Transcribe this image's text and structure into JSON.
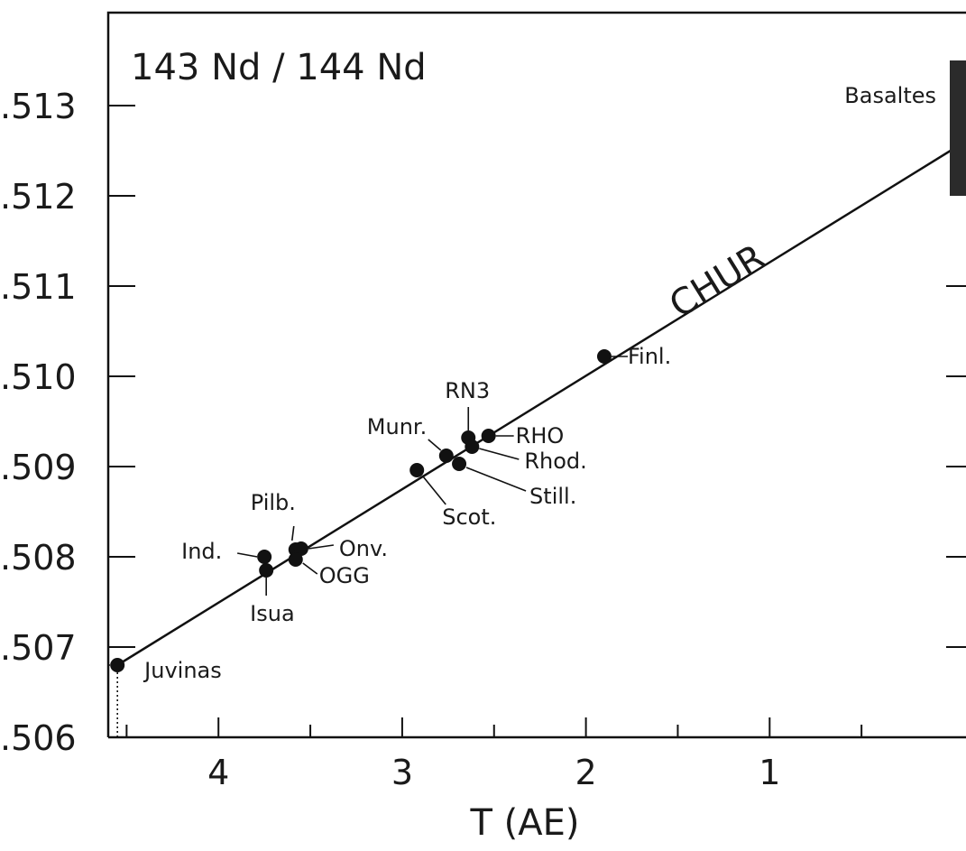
{
  "chart_data": {
    "type": "scatter",
    "title": "143 Nd / 144 Nd",
    "xlabel": "T (AE)",
    "ylabel": "",
    "xlim": [
      4.6,
      0
    ],
    "ylim": [
      0.506,
      0.5137
    ],
    "x_reversed": true,
    "x_ticks_major": [
      4,
      3,
      2,
      1
    ],
    "x_tick_labels": [
      "4",
      "3",
      "2",
      "1"
    ],
    "x_ticks_minor": [
      4.5,
      3.5,
      2.5,
      1.5,
      0.5
    ],
    "y_ticks": [
      0.506,
      0.507,
      0.508,
      0.509,
      0.51,
      0.511,
      0.512,
      0.513
    ],
    "y_tick_labels": [
      ".506",
      ".507",
      ".508",
      ".509",
      ".510",
      ".511",
      ".512",
      ".513"
    ],
    "grid": false,
    "reference_line": {
      "label": "CHUR",
      "x": [
        4.55,
        0
      ],
      "y": [
        0.5068,
        0.51252
      ]
    },
    "range_bar": {
      "label": "Basaltes",
      "x": 0,
      "y": [
        0.512,
        0.5135
      ]
    },
    "points": [
      {
        "label": "Juvinas",
        "x": 4.55,
        "y": 0.5068
      },
      {
        "label": "Ind.",
        "x": 3.75,
        "y": 0.508
      },
      {
        "label": "Isua",
        "x": 3.74,
        "y": 0.50785
      },
      {
        "label": "Pilb.",
        "x": 3.58,
        "y": 0.50808
      },
      {
        "label": "Onv.",
        "x": 3.55,
        "y": 0.50809
      },
      {
        "label": "OGG",
        "x": 3.58,
        "y": 0.50797
      },
      {
        "label": "Scot.",
        "x": 2.92,
        "y": 0.50896
      },
      {
        "label": "Munr.",
        "x": 2.76,
        "y": 0.50912
      },
      {
        "label": "Still.",
        "x": 2.69,
        "y": 0.50903
      },
      {
        "label": "RN3",
        "x": 2.64,
        "y": 0.50932
      },
      {
        "label": "Rhod.",
        "x": 2.62,
        "y": 0.50922
      },
      {
        "label": "RHO",
        "x": 2.53,
        "y": 0.50934
      },
      {
        "label": "Finl.",
        "x": 1.9,
        "y": 0.51022
      }
    ]
  }
}
